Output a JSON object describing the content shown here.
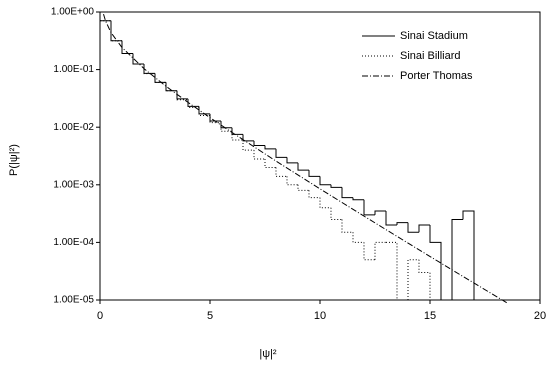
{
  "chart_data": {
    "type": "step",
    "xlabel": "|ψ|²",
    "ylabel": "P(|ψ|²)",
    "xlim": [
      0,
      20
    ],
    "xticks": [
      0,
      5,
      10,
      15,
      20
    ],
    "ylim": [
      1e-05,
      1
    ],
    "log_y": true,
    "yticks": [
      {
        "value": 1,
        "label": "1.00E+00"
      },
      {
        "value": 0.1,
        "label": "1.00E-01"
      },
      {
        "value": 0.01,
        "label": "1.00E-02"
      },
      {
        "value": 0.001,
        "label": "1.00E-03"
      },
      {
        "value": 0.0001,
        "label": "1.00E-04"
      },
      {
        "value": 1e-05,
        "label": "1.00E-05"
      }
    ],
    "x": [
      0,
      0.5,
      1,
      1.5,
      2,
      2.5,
      3,
      3.5,
      4,
      4.5,
      5,
      5.5,
      6,
      6.5,
      7,
      7.5,
      8,
      8.5,
      9,
      9.5,
      10,
      10.5,
      11,
      11.5,
      12,
      12.5,
      13,
      13.5,
      14,
      14.5,
      15,
      15.5,
      16,
      16.5
    ],
    "legend": "upper right",
    "series": [
      {
        "name": "Sinai Stadium",
        "color": "#000000",
        "style": "solid",
        "values": [
          0.704,
          0.317,
          0.19,
          0.125,
          0.086,
          0.06,
          0.043,
          0.031,
          0.023,
          0.017,
          0.0128,
          0.0098,
          0.0075,
          0.0058,
          0.0048,
          0.0042,
          0.003,
          0.0024,
          0.0018,
          0.0014,
          0.001,
          0.0009,
          0.0006,
          0.00055,
          0.0003,
          0.00035,
          0.0002,
          0.00022,
          0.00015,
          0.0002,
          0.0001,
          null,
          0.00025,
          0.00035
        ]
      },
      {
        "name": "Sinai Billiard",
        "color": "#000000",
        "style": "dotted",
        "values": [
          0.704,
          0.317,
          0.19,
          0.125,
          0.085,
          0.06,
          0.043,
          0.03,
          0.022,
          0.016,
          0.012,
          0.0085,
          0.006,
          0.004,
          0.0028,
          0.002,
          0.0014,
          0.001,
          0.0008,
          0.0006,
          0.0004,
          0.00025,
          0.00015,
          0.0001,
          5e-05,
          0.0001,
          0.0001,
          null,
          5e-05,
          3e-05,
          null,
          null,
          null,
          null
        ]
      },
      {
        "name": "Porter Thomas",
        "color": "#000000",
        "style": "dashdot",
        "kind": "line",
        "x": [
          0.16,
          0.25,
          0.5,
          1,
          2,
          3,
          4,
          5,
          6,
          8,
          10,
          12,
          14,
          16,
          18.5
        ],
        "values": [
          0.92,
          0.704,
          0.439,
          0.242,
          0.104,
          0.0514,
          0.027,
          0.01465,
          0.00811,
          0.00258,
          0.00085,
          0.000286,
          9.72e-05,
          3.34e-05,
          8.91e-06
        ]
      }
    ]
  }
}
